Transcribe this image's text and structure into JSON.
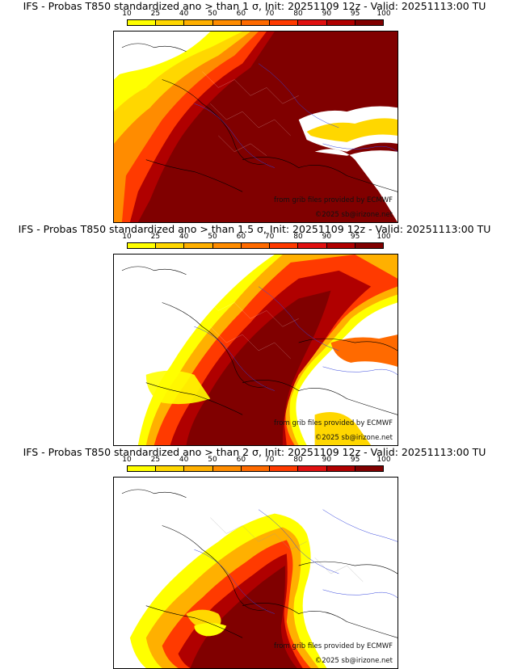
{
  "colorbar": {
    "ticks": [
      "10",
      "25",
      "40",
      "50",
      "60",
      "70",
      "80",
      "90",
      "95",
      "100"
    ],
    "colors": [
      "#ffff00",
      "#ffd700",
      "#ffb000",
      "#ff8c00",
      "#ff6a00",
      "#ff3a00",
      "#e01010",
      "#b00000",
      "#800000"
    ]
  },
  "panels": [
    {
      "title": "IFS - Probas T850  standardized ano > than 1 σ, Init: 20251109 12z - Valid: 20251113:00 TU",
      "source": "from grib files provided by ECMWF",
      "copyright": "©2025 sb@irizone.net"
    },
    {
      "title": "IFS - Probas T850  standardized ano > than 1.5 σ, Init: 20251109 12z - Valid: 20251113:00 TU",
      "source": "from grib files provided by ECMWF",
      "copyright": "©2025 sb@irizone.net"
    },
    {
      "title": "IFS - Probas T850  standardized ano > than 2 σ, Init: 20251109 12z - Valid: 20251113:00 TU",
      "source": "from grib files provided by ECMWF",
      "copyright": "©2025 sb@irizone.net"
    }
  ]
}
